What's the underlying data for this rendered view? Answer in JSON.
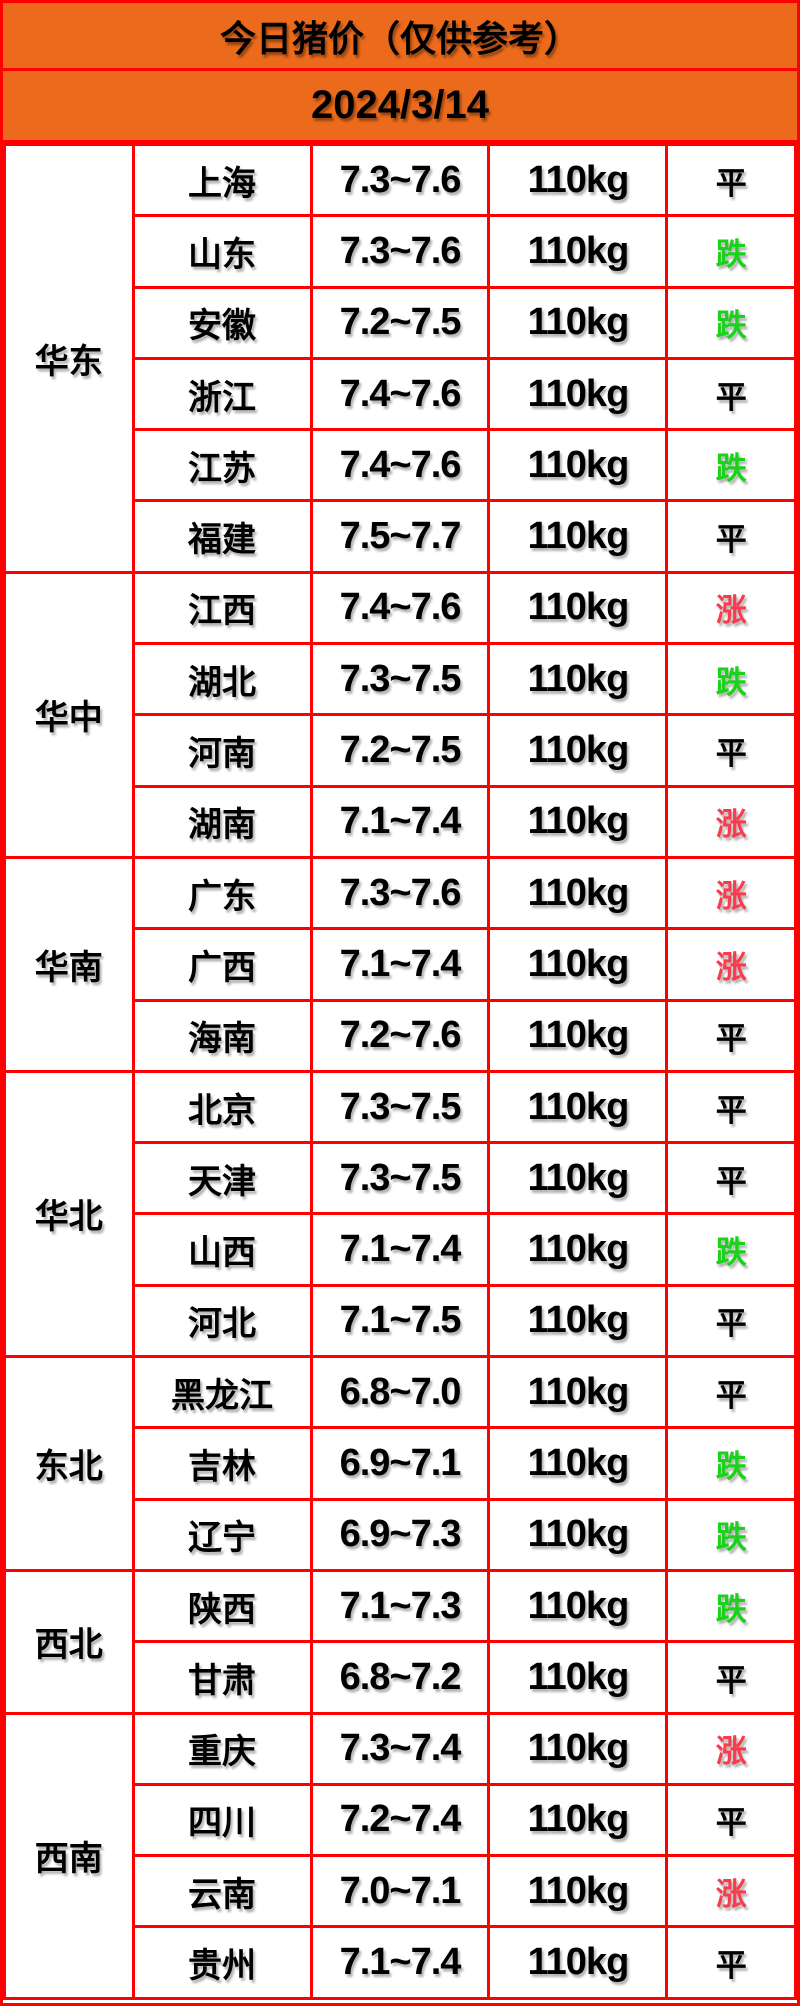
{
  "colors": {
    "header-orange": "#EB6A1B",
    "border-red": "#FF0000",
    "trend-down-green": "#1BD21B",
    "trend-up-red": "#F93B4D",
    "text-black": "#000000",
    "cell-white": "#FFFFFF"
  },
  "header": {
    "title": "今日猪价（仅供参考）",
    "date": "2024/3/14"
  },
  "table": {
    "regions": [
      {
        "name": "华东",
        "rowspan": 6
      },
      {
        "name": "华中",
        "rowspan": 4
      },
      {
        "name": "华南",
        "rowspan": 3
      },
      {
        "name": "华北",
        "rowspan": 4
      },
      {
        "name": "东北",
        "rowspan": 3
      },
      {
        "name": "西北",
        "rowspan": 2
      },
      {
        "name": "西南",
        "rowspan": 4
      }
    ],
    "rows": [
      {
        "province": "上海",
        "price": "7.3~7.6",
        "weight": "110kg",
        "trend": "平",
        "trend_key": "flat"
      },
      {
        "province": "山东",
        "price": "7.3~7.6",
        "weight": "110kg",
        "trend": "跌",
        "trend_key": "down"
      },
      {
        "province": "安徽",
        "price": "7.2~7.5",
        "weight": "110kg",
        "trend": "跌",
        "trend_key": "down"
      },
      {
        "province": "浙江",
        "price": "7.4~7.6",
        "weight": "110kg",
        "trend": "平",
        "trend_key": "flat"
      },
      {
        "province": "江苏",
        "price": "7.4~7.6",
        "weight": "110kg",
        "trend": "跌",
        "trend_key": "down"
      },
      {
        "province": "福建",
        "price": "7.5~7.7",
        "weight": "110kg",
        "trend": "平",
        "trend_key": "flat"
      },
      {
        "province": "江西",
        "price": "7.4~7.6",
        "weight": "110kg",
        "trend": "涨",
        "trend_key": "up"
      },
      {
        "province": "湖北",
        "price": "7.3~7.5",
        "weight": "110kg",
        "trend": "跌",
        "trend_key": "down"
      },
      {
        "province": "河南",
        "price": "7.2~7.5",
        "weight": "110kg",
        "trend": "平",
        "trend_key": "flat"
      },
      {
        "province": "湖南",
        "price": "7.1~7.4",
        "weight": "110kg",
        "trend": "涨",
        "trend_key": "up"
      },
      {
        "province": "广东",
        "price": "7.3~7.6",
        "weight": "110kg",
        "trend": "涨",
        "trend_key": "up"
      },
      {
        "province": "广西",
        "price": "7.1~7.4",
        "weight": "110kg",
        "trend": "涨",
        "trend_key": "up"
      },
      {
        "province": "海南",
        "price": "7.2~7.6",
        "weight": "110kg",
        "trend": "平",
        "trend_key": "flat"
      },
      {
        "province": "北京",
        "price": "7.3~7.5",
        "weight": "110kg",
        "trend": "平",
        "trend_key": "flat"
      },
      {
        "province": "天津",
        "price": "7.3~7.5",
        "weight": "110kg",
        "trend": "平",
        "trend_key": "flat"
      },
      {
        "province": "山西",
        "price": "7.1~7.4",
        "weight": "110kg",
        "trend": "跌",
        "trend_key": "down"
      },
      {
        "province": "河北",
        "price": "7.1~7.5",
        "weight": "110kg",
        "trend": "平",
        "trend_key": "flat"
      },
      {
        "province": "黑龙江",
        "price": "6.8~7.0",
        "weight": "110kg",
        "trend": "平",
        "trend_key": "flat"
      },
      {
        "province": "吉林",
        "price": "6.9~7.1",
        "weight": "110kg",
        "trend": "跌",
        "trend_key": "down"
      },
      {
        "province": "辽宁",
        "price": "6.9~7.3",
        "weight": "110kg",
        "trend": "跌",
        "trend_key": "down"
      },
      {
        "province": "陕西",
        "price": "7.1~7.3",
        "weight": "110kg",
        "trend": "跌",
        "trend_key": "down"
      },
      {
        "province": "甘肃",
        "price": "6.8~7.2",
        "weight": "110kg",
        "trend": "平",
        "trend_key": "flat"
      },
      {
        "province": "重庆",
        "price": "7.3~7.4",
        "weight": "110kg",
        "trend": "涨",
        "trend_key": "up"
      },
      {
        "province": "四川",
        "price": "7.2~7.4",
        "weight": "110kg",
        "trend": "平",
        "trend_key": "flat"
      },
      {
        "province": "云南",
        "price": "7.0~7.1",
        "weight": "110kg",
        "trend": "涨",
        "trend_key": "up"
      },
      {
        "province": "贵州",
        "price": "7.1~7.4",
        "weight": "110kg",
        "trend": "平",
        "trend_key": "flat"
      }
    ]
  }
}
